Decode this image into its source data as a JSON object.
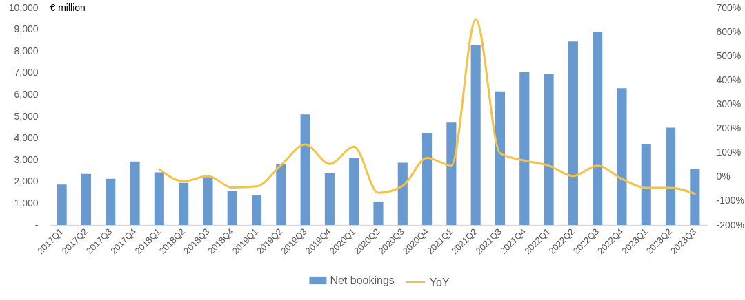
{
  "chart_data": {
    "type": "bar",
    "ylabel": "€ million",
    "categories": [
      "2017Q1",
      "2017Q2",
      "2017Q3",
      "2017Q4",
      "2018Q1",
      "2018Q2",
      "2018Q3",
      "2018Q4",
      "2019Q1",
      "2019Q2",
      "2019Q3",
      "2019Q4",
      "2020Q1",
      "2020Q2",
      "2020Q3",
      "2020Q4",
      "2021Q1",
      "2021Q2",
      "2021Q3",
      "2021Q4",
      "2022Q1",
      "2022Q2",
      "2022Q3",
      "2022Q4",
      "2023Q1",
      "2023Q2",
      "2023Q3"
    ],
    "series": [
      {
        "name": "Net bookings",
        "color": "#6899cf",
        "values": [
          1860,
          2350,
          2130,
          2920,
          2420,
          1940,
          2210,
          1570,
          1390,
          2810,
          5090,
          2370,
          3070,
          1080,
          2860,
          4210,
          4710,
          8260,
          6150,
          7030,
          6950,
          8440,
          8890,
          6290,
          3720,
          4480,
          2590
        ]
      },
      {
        "name": "YoY",
        "type": "line",
        "axis": "y2",
        "color": "#f5c243",
        "values": [
          null,
          null,
          null,
          null,
          31,
          -19,
          3,
          -45,
          -40,
          48,
          133,
          53,
          124,
          -67,
          -38,
          78,
          46,
          652,
          97,
          67,
          46,
          3,
          46,
          -9,
          -46,
          -46,
          -71
        ]
      }
    ],
    "ylim": [
      0,
      10000
    ],
    "yticks": [
      {
        "value": 0,
        "label": "-"
      },
      {
        "value": 1000,
        "label": "1,000"
      },
      {
        "value": 2000,
        "label": "2,000"
      },
      {
        "value": 3000,
        "label": "3,000"
      },
      {
        "value": 4000,
        "label": "4,000"
      },
      {
        "value": 5000,
        "label": "5,000"
      },
      {
        "value": 6000,
        "label": "6,000"
      },
      {
        "value": 7000,
        "label": "7,000"
      },
      {
        "value": 8000,
        "label": "8,000"
      },
      {
        "value": 9000,
        "label": "9,000"
      },
      {
        "value": 10000,
        "label": "10,000"
      }
    ],
    "y2lim": [
      -200,
      700
    ],
    "y2ticks": [
      {
        "value": -200,
        "label": "-200%"
      },
      {
        "value": -100,
        "label": "-100%"
      },
      {
        "value": 0,
        "label": "0%"
      },
      {
        "value": 100,
        "label": "100%"
      },
      {
        "value": 200,
        "label": "200%"
      },
      {
        "value": 300,
        "label": "300%"
      },
      {
        "value": 400,
        "label": "400%"
      },
      {
        "value": 500,
        "label": "500%"
      },
      {
        "value": 600,
        "label": "600%"
      },
      {
        "value": 700,
        "label": "700%"
      }
    ],
    "legend": "bottom"
  }
}
